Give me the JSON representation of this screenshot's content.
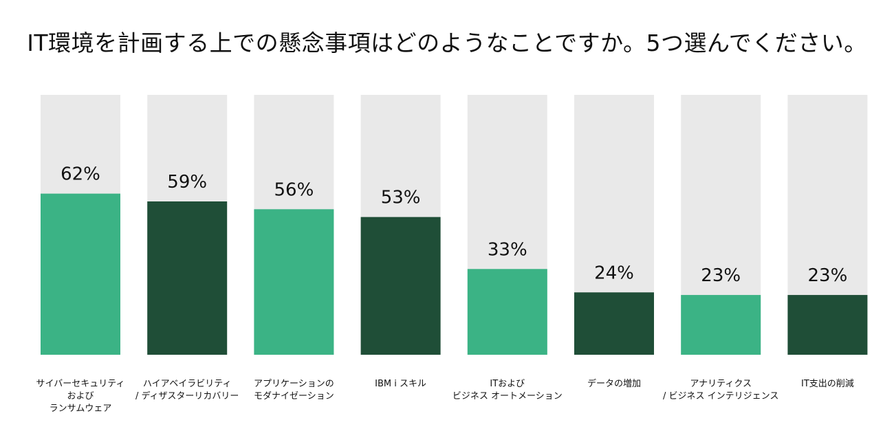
{
  "chart_data": {
    "type": "bar",
    "title": "IT環境を計画する上での懸念事項はどのようなことですか。5つ選んでください。",
    "categories": [
      "サイバーセキュリティ\nおよび\nランサムウェア",
      "ハイアベイラビリティ\n/ ディザスターリカバリー",
      "アプリケーションの\nモダナイゼーション",
      "IBM i スキル",
      "ITおよび\nビジネス オートメーション",
      "データの増加",
      "アナリティクス\n/ ビジネス インテリジェンス",
      "IT支出の削減"
    ],
    "values": [
      62,
      59,
      56,
      53,
      33,
      24,
      23,
      23
    ],
    "value_labels": [
      "62%",
      "59%",
      "56%",
      "53%",
      "33%",
      "24%",
      "23%",
      "23%"
    ],
    "ylim": [
      0,
      100
    ],
    "unit": "%",
    "grid": false,
    "colors": {
      "background_bar": "#e9e9e9",
      "light_green": "#3bb385",
      "dark_green": "#1f4e37"
    },
    "bar_color_pattern": [
      "light_green",
      "dark_green",
      "light_green",
      "dark_green",
      "light_green",
      "dark_green",
      "light_green",
      "dark_green"
    ]
  }
}
